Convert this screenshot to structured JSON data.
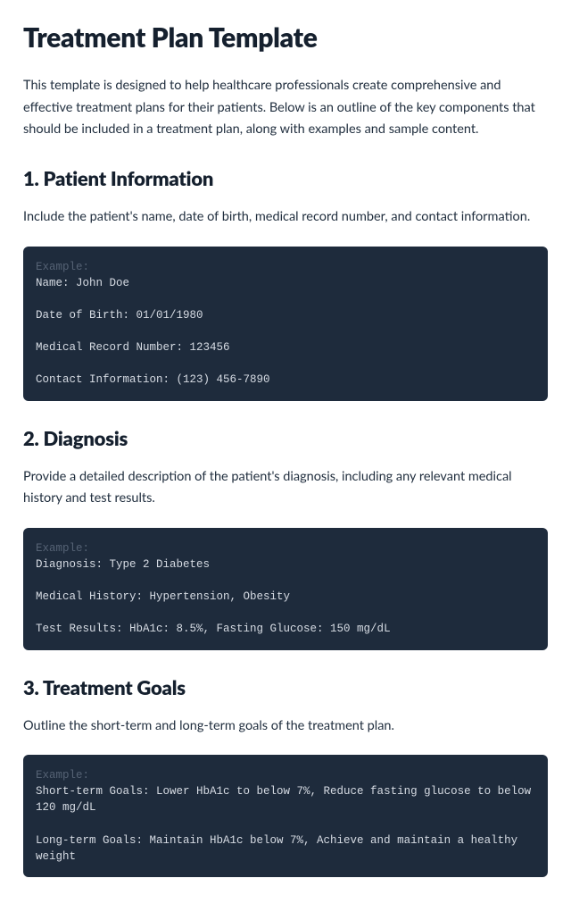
{
  "title": "Treatment Plan Template",
  "intro": "This template is designed to help healthcare professionals create comprehensive and effective treatment plans for their patients. Below is an outline of the key components that should be included in a treatment plan, along with examples and sample content.",
  "example_label": "Example:",
  "sections": [
    {
      "heading": "1. Patient Information",
      "desc": "Include the patient's name, date of birth, medical record number, and contact information.",
      "example": "Name: John Doe\n\nDate of Birth: 01/01/1980\n\nMedical Record Number: 123456\n\nContact Information: (123) 456-7890"
    },
    {
      "heading": "2. Diagnosis",
      "desc": "Provide a detailed description of the patient's diagnosis, including any relevant medical history and test results.",
      "example": "Diagnosis: Type 2 Diabetes\n\nMedical History: Hypertension, Obesity\n\nTest Results: HbA1c: 8.5%, Fasting Glucose: 150 mg/dL"
    },
    {
      "heading": "3. Treatment Goals",
      "desc": "Outline the short-term and long-term goals of the treatment plan.",
      "example": "Short-term Goals: Lower HbA1c to below 7%, Reduce fasting glucose to below 120 mg/dL\n\nLong-term Goals: Maintain HbA1c below 7%, Achieve and maintain a healthy weight"
    }
  ]
}
